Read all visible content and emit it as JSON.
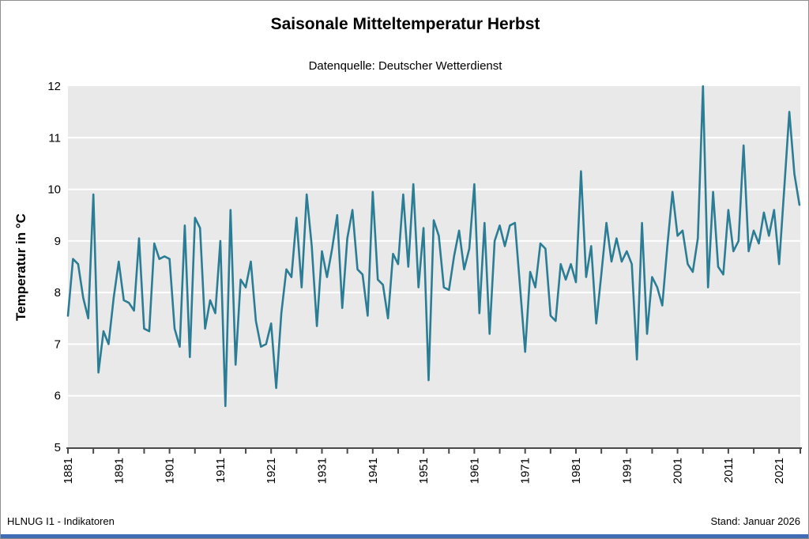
{
  "header": {
    "title": "Saisonale Mitteltemperatur Herbst",
    "subtitle": "Datenquelle: Deutscher Wetterdienst"
  },
  "footer": {
    "left": "HLNUG I1 - Indikatoren",
    "right": "Stand: Januar 2026"
  },
  "colors": {
    "line": "#2a7d94",
    "plot_background": "#e9e9e9",
    "gridline": "#ffffff",
    "axis": "#4a4a4a",
    "bottom_bar": "#3f6cb4"
  },
  "chart_data": {
    "type": "line",
    "title": "Saisonale Mitteltemperatur Herbst",
    "subtitle": "Datenquelle: Deutscher Wetterdienst",
    "xlabel": "",
    "ylabel": "Temperatur in °C",
    "ylim": [
      5,
      12
    ],
    "y_ticks": [
      5,
      6,
      7,
      8,
      9,
      10,
      11,
      12
    ],
    "grid": "horizontal-white",
    "legend_position": "none",
    "start_year": 1881,
    "end_year": 2025,
    "x_major_tick_step": 10,
    "x_minor_tick_step": 5,
    "x_tick_labels": [
      "1881",
      "1891",
      "1901",
      "1911",
      "1921",
      "1931",
      "1941",
      "1951",
      "1961",
      "1971",
      "1981",
      "1991",
      "2001",
      "2011",
      "2021"
    ],
    "unit": "°C",
    "values": [
      7.55,
      8.65,
      8.55,
      7.9,
      7.5,
      9.9,
      6.45,
      7.25,
      7.0,
      7.9,
      8.6,
      7.85,
      7.8,
      7.65,
      9.05,
      7.3,
      7.25,
      8.95,
      8.65,
      8.7,
      8.65,
      7.3,
      6.95,
      9.3,
      6.75,
      9.45,
      9.25,
      7.3,
      7.85,
      7.6,
      9.0,
      5.8,
      9.6,
      6.6,
      8.25,
      8.1,
      8.6,
      7.45,
      6.95,
      7.0,
      7.4,
      6.15,
      7.6,
      8.45,
      8.3,
      9.45,
      8.1,
      9.9,
      8.9,
      7.35,
      8.8,
      8.3,
      8.85,
      9.5,
      7.7,
      9.05,
      9.6,
      8.45,
      8.35,
      7.55,
      9.95,
      8.25,
      8.15,
      7.5,
      8.75,
      8.55,
      9.9,
      8.5,
      10.1,
      8.1,
      9.25,
      6.3,
      9.4,
      9.1,
      8.1,
      8.05,
      8.7,
      9.2,
      8.45,
      8.85,
      10.1,
      7.6,
      9.35,
      7.2,
      9.0,
      9.3,
      8.9,
      9.3,
      9.35,
      8.1,
      6.85,
      8.4,
      8.1,
      8.95,
      8.85,
      7.55,
      7.45,
      8.55,
      8.25,
      8.55,
      8.2,
      10.35,
      8.3,
      8.9,
      7.4,
      8.35,
      9.35,
      8.6,
      9.05,
      8.6,
      8.8,
      8.55,
      6.7,
      9.35,
      7.2,
      8.3,
      8.1,
      7.75,
      8.9,
      9.95,
      9.1,
      9.2,
      8.55,
      8.4,
      9.05,
      12.0,
      8.1,
      9.95,
      8.5,
      8.35,
      9.6,
      8.8,
      9.0,
      10.85,
      8.8,
      9.2,
      8.95,
      9.55,
      9.1,
      9.6,
      8.55,
      10.0,
      11.5,
      10.3,
      9.7
    ]
  }
}
